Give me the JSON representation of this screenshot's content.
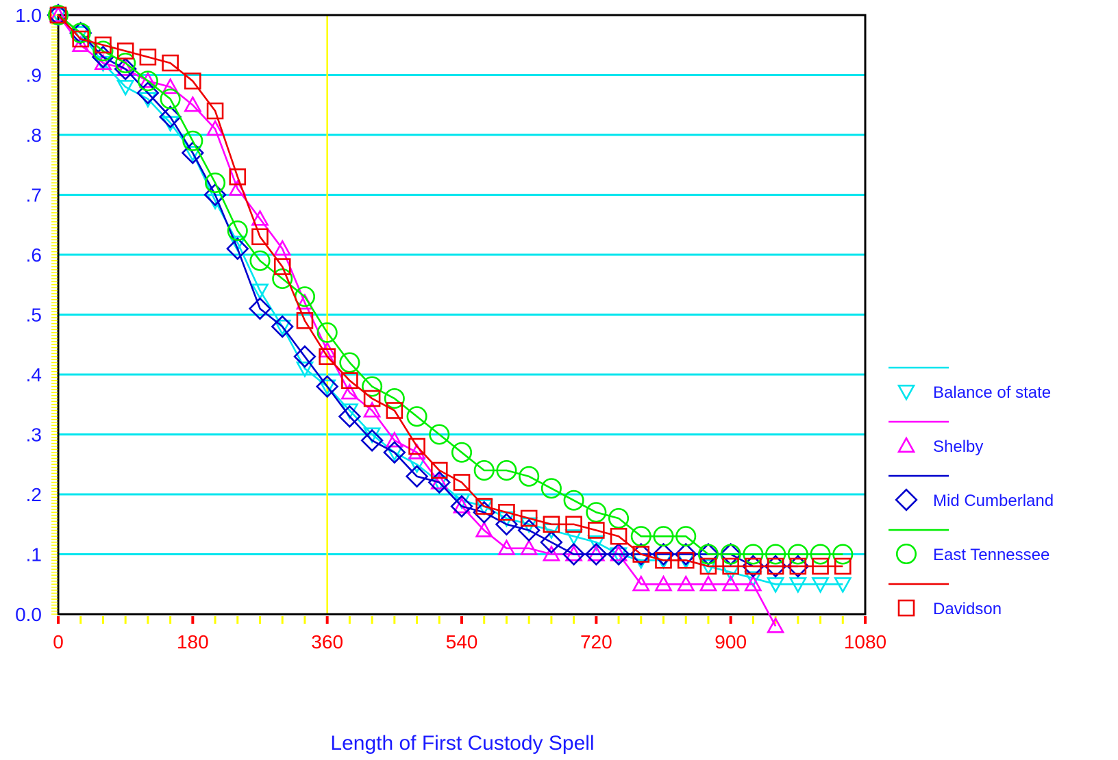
{
  "chart_data": {
    "type": "line",
    "xlabel": "Length of First Custody Spell",
    "ylabel": "",
    "xlim": [
      0,
      1080
    ],
    "ylim": [
      0,
      1.0
    ],
    "x_ticks": [
      0,
      180,
      360,
      540,
      720,
      900,
      1080
    ],
    "x_tick_labels": [
      "0",
      "180",
      "360",
      "540",
      "720",
      "900",
      "1080"
    ],
    "y_ticks": [
      0,
      0.1,
      0.2,
      0.3,
      0.4,
      0.5,
      0.6,
      0.7,
      0.8,
      0.9,
      1.0
    ],
    "y_tick_labels": [
      "0.0",
      ".1",
      ".2",
      ".3",
      ".4",
      ".5",
      ".6",
      ".7",
      ".8",
      ".9",
      "1.0"
    ],
    "grid": "horizontal",
    "reference_line_x": 360,
    "legend_position": "right",
    "series": [
      {
        "name": "Balance of state",
        "color": "#00e5ee",
        "marker": "triangle-down",
        "points": [
          [
            0,
            1.0
          ],
          [
            30,
            0.97
          ],
          [
            60,
            0.92
          ],
          [
            90,
            0.88
          ],
          [
            120,
            0.86
          ],
          [
            150,
            0.82
          ],
          [
            180,
            0.77
          ],
          [
            210,
            0.69
          ],
          [
            240,
            0.62
          ],
          [
            270,
            0.54
          ],
          [
            300,
            0.48
          ],
          [
            330,
            0.41
          ],
          [
            360,
            0.38
          ],
          [
            390,
            0.34
          ],
          [
            420,
            0.3
          ],
          [
            450,
            0.27
          ],
          [
            480,
            0.25
          ],
          [
            510,
            0.22
          ],
          [
            540,
            0.19
          ],
          [
            570,
            0.18
          ],
          [
            600,
            0.16
          ],
          [
            630,
            0.15
          ],
          [
            660,
            0.14
          ],
          [
            690,
            0.13
          ],
          [
            720,
            0.12
          ],
          [
            750,
            0.1
          ],
          [
            780,
            0.09
          ],
          [
            810,
            0.09
          ],
          [
            840,
            0.09
          ],
          [
            870,
            0.08
          ],
          [
            900,
            0.07
          ],
          [
            930,
            0.06
          ],
          [
            960,
            0.05
          ],
          [
            990,
            0.05
          ],
          [
            1020,
            0.05
          ],
          [
            1050,
            0.05
          ]
        ]
      },
      {
        "name": "Shelby",
        "color": "#ff00ff",
        "marker": "triangle-up",
        "points": [
          [
            0,
            1.0
          ],
          [
            30,
            0.95
          ],
          [
            60,
            0.92
          ],
          [
            90,
            0.91
          ],
          [
            120,
            0.89
          ],
          [
            150,
            0.88
          ],
          [
            180,
            0.85
          ],
          [
            210,
            0.81
          ],
          [
            240,
            0.71
          ],
          [
            270,
            0.66
          ],
          [
            300,
            0.61
          ],
          [
            330,
            0.52
          ],
          [
            360,
            0.44
          ],
          [
            390,
            0.37
          ],
          [
            420,
            0.34
          ],
          [
            450,
            0.29
          ],
          [
            480,
            0.27
          ],
          [
            510,
            0.22
          ],
          [
            540,
            0.18
          ],
          [
            570,
            0.14
          ],
          [
            600,
            0.11
          ],
          [
            630,
            0.11
          ],
          [
            660,
            0.1
          ],
          [
            690,
            0.1
          ],
          [
            720,
            0.1
          ],
          [
            750,
            0.1
          ],
          [
            780,
            0.05
          ],
          [
            810,
            0.05
          ],
          [
            840,
            0.05
          ],
          [
            870,
            0.05
          ],
          [
            900,
            0.05
          ],
          [
            930,
            0.05
          ],
          [
            960,
            -0.02
          ]
        ]
      },
      {
        "name": "Mid Cumberland",
        "color": "#0000cd",
        "marker": "diamond",
        "points": [
          [
            0,
            1.0
          ],
          [
            30,
            0.97
          ],
          [
            60,
            0.93
          ],
          [
            90,
            0.91
          ],
          [
            120,
            0.87
          ],
          [
            150,
            0.83
          ],
          [
            180,
            0.77
          ],
          [
            210,
            0.7
          ],
          [
            240,
            0.61
          ],
          [
            270,
            0.51
          ],
          [
            300,
            0.48
          ],
          [
            330,
            0.43
          ],
          [
            360,
            0.38
          ],
          [
            390,
            0.33
          ],
          [
            420,
            0.29
          ],
          [
            450,
            0.27
          ],
          [
            480,
            0.23
          ],
          [
            510,
            0.22
          ],
          [
            540,
            0.18
          ],
          [
            570,
            0.17
          ],
          [
            600,
            0.15
          ],
          [
            630,
            0.14
          ],
          [
            660,
            0.12
          ],
          [
            690,
            0.1
          ],
          [
            720,
            0.1
          ],
          [
            750,
            0.1
          ],
          [
            780,
            0.1
          ],
          [
            810,
            0.1
          ],
          [
            840,
            0.1
          ],
          [
            870,
            0.1
          ],
          [
            900,
            0.1
          ],
          [
            930,
            0.08
          ],
          [
            960,
            0.08
          ],
          [
            990,
            0.08
          ]
        ]
      },
      {
        "name": "East Tennessee",
        "color": "#00ee00",
        "marker": "circle",
        "points": [
          [
            0,
            1.0
          ],
          [
            30,
            0.97
          ],
          [
            60,
            0.94
          ],
          [
            90,
            0.92
          ],
          [
            120,
            0.89
          ],
          [
            150,
            0.86
          ],
          [
            180,
            0.79
          ],
          [
            210,
            0.72
          ],
          [
            240,
            0.64
          ],
          [
            270,
            0.59
          ],
          [
            300,
            0.56
          ],
          [
            330,
            0.53
          ],
          [
            360,
            0.47
          ],
          [
            390,
            0.42
          ],
          [
            420,
            0.38
          ],
          [
            450,
            0.36
          ],
          [
            480,
            0.33
          ],
          [
            510,
            0.3
          ],
          [
            540,
            0.27
          ],
          [
            570,
            0.24
          ],
          [
            600,
            0.24
          ],
          [
            630,
            0.23
          ],
          [
            660,
            0.21
          ],
          [
            690,
            0.19
          ],
          [
            720,
            0.17
          ],
          [
            750,
            0.16
          ],
          [
            780,
            0.13
          ],
          [
            810,
            0.13
          ],
          [
            840,
            0.13
          ],
          [
            870,
            0.1
          ],
          [
            900,
            0.1
          ],
          [
            930,
            0.1
          ],
          [
            960,
            0.1
          ],
          [
            990,
            0.1
          ],
          [
            1020,
            0.1
          ],
          [
            1050,
            0.1
          ]
        ]
      },
      {
        "name": "Davidson",
        "color": "#ee0000",
        "marker": "square",
        "points": [
          [
            0,
            1.0
          ],
          [
            30,
            0.96
          ],
          [
            60,
            0.95
          ],
          [
            90,
            0.94
          ],
          [
            120,
            0.93
          ],
          [
            150,
            0.92
          ],
          [
            180,
            0.89
          ],
          [
            210,
            0.84
          ],
          [
            240,
            0.73
          ],
          [
            270,
            0.63
          ],
          [
            300,
            0.58
          ],
          [
            330,
            0.49
          ],
          [
            360,
            0.43
          ],
          [
            390,
            0.39
          ],
          [
            420,
            0.36
          ],
          [
            450,
            0.34
          ],
          [
            480,
            0.28
          ],
          [
            510,
            0.24
          ],
          [
            540,
            0.22
          ],
          [
            570,
            0.18
          ],
          [
            600,
            0.17
          ],
          [
            630,
            0.16
          ],
          [
            660,
            0.15
          ],
          [
            690,
            0.15
          ],
          [
            720,
            0.14
          ],
          [
            750,
            0.13
          ],
          [
            780,
            0.1
          ],
          [
            810,
            0.09
          ],
          [
            840,
            0.09
          ],
          [
            870,
            0.08
          ],
          [
            900,
            0.08
          ],
          [
            930,
            0.08
          ],
          [
            960,
            0.08
          ],
          [
            990,
            0.08
          ],
          [
            1020,
            0.08
          ],
          [
            1050,
            0.08
          ]
        ]
      }
    ]
  },
  "colors": {
    "grid_line": "#00e5ee",
    "axis_frame": "#000000",
    "reference_line": "#ffff00",
    "y_tick_label": "#1a1aff",
    "x_tick_label": "#ff0000",
    "x_label": "#1a1aff",
    "legend_label": "#1a1aff",
    "minor_tick": "#ffff00",
    "major_tick": "#ff0000"
  }
}
